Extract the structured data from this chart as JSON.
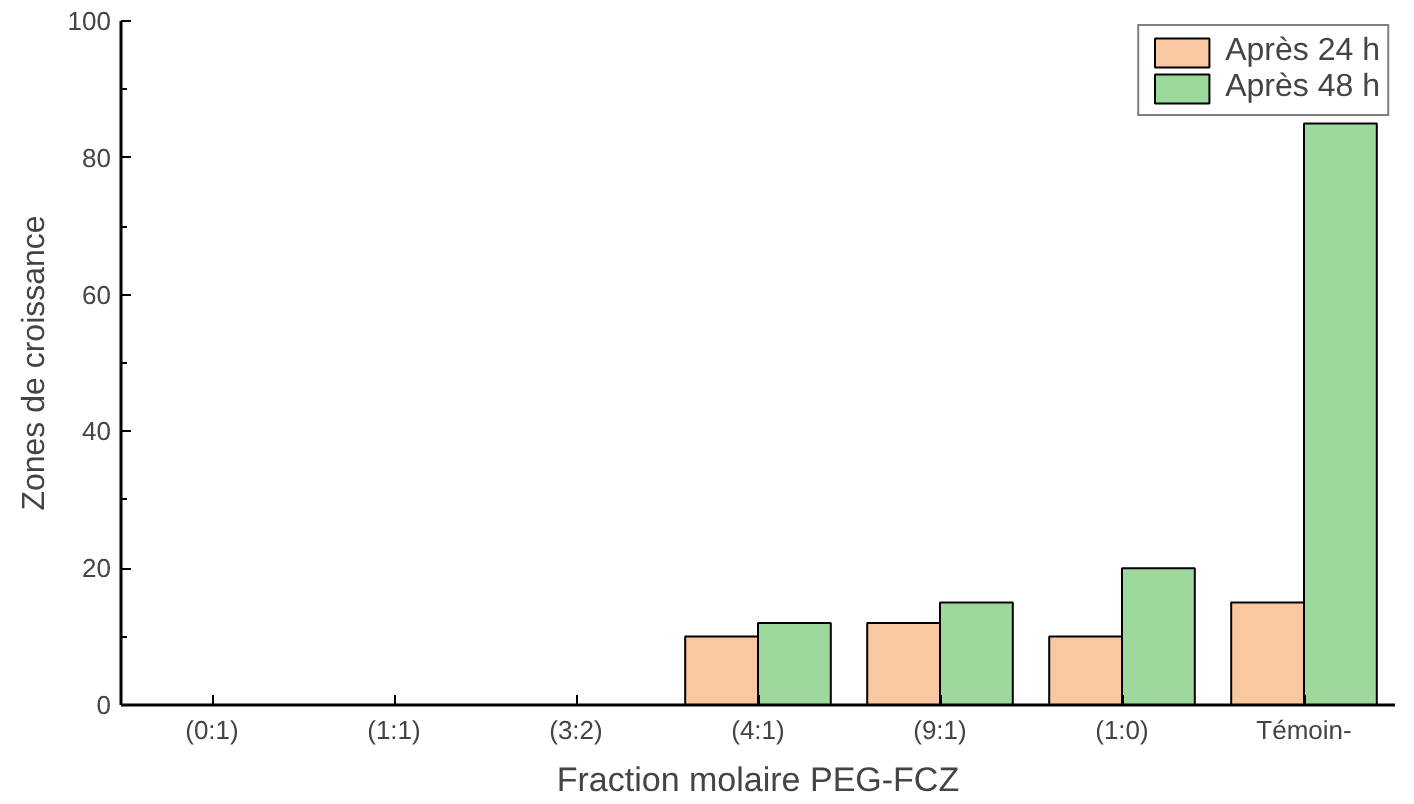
{
  "chart_data": {
    "type": "bar",
    "xlabel": "Fraction molaire PEG-FCZ",
    "ylabel": "Zones de croissance",
    "categories": [
      "(0:1)",
      "(1:1)",
      "(3:2)",
      "(4:1)",
      "(9:1)",
      "(1:0)",
      "Témoin-"
    ],
    "series": [
      {
        "name": "Après 24 h",
        "color": "#fac8a0",
        "values": [
          null,
          null,
          null,
          10,
          12,
          10,
          15
        ]
      },
      {
        "name": "Après 48 h",
        "color": "#9dd89c",
        "values": [
          null,
          null,
          null,
          12,
          15,
          20,
          85
        ]
      }
    ],
    "ylim": [
      0,
      100
    ],
    "yticks": [
      0,
      20,
      40,
      60,
      80,
      100
    ],
    "grid": false,
    "legend": "top right"
  }
}
